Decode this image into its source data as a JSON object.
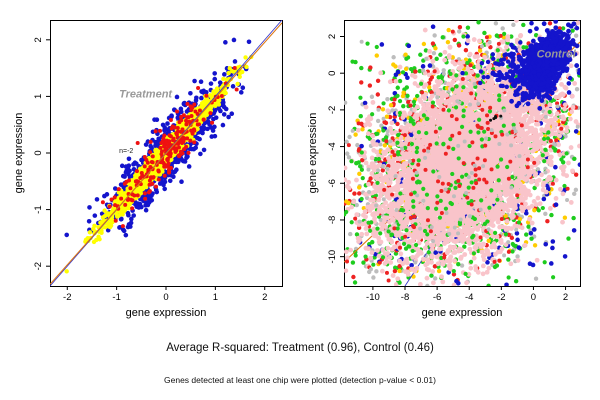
{
  "captions": {
    "summary": "Average R-squared: Treatment (0.96), Control (0.46)",
    "footnote": "Genes detected at least one chip were plotted (detection p-value < 0.01)"
  },
  "chart_data": [
    {
      "type": "scatter",
      "panel": "Treatment",
      "xlabel": "gene expression",
      "ylabel": "gene expression",
      "xlim": [
        -2.35,
        2.35
      ],
      "ylim": [
        -2.35,
        2.35
      ],
      "xticks": [
        -2,
        -1,
        0,
        1,
        2
      ],
      "yticks": [
        -2,
        -1,
        0,
        1,
        2
      ],
      "grid": false,
      "legend": "none",
      "lines": [
        {
          "x1": -2.35,
          "y1": -2.35,
          "x2": 2.35,
          "y2": 2.35,
          "color": "#3a3acc",
          "width": 0.9
        },
        {
          "x1": -2.35,
          "y1": -2.32,
          "x2": 2.35,
          "y2": 2.3,
          "color": "#dd7711",
          "width": 1.1
        }
      ],
      "annotations": [
        {
          "text": "Treatment",
          "x": -0.95,
          "y": 0.98,
          "color": "#999999",
          "size": 11,
          "bold": true,
          "italic": true
        },
        {
          "text": "n=-2",
          "x": -0.95,
          "y": 0.0,
          "color": "#222222",
          "size": 7,
          "bold": false,
          "italic": false
        }
      ],
      "clusters": [
        {
          "name": "outlier-blue",
          "color": "#1414cc",
          "n": 1000,
          "cx": 0,
          "cy": 0,
          "sx": 0.58,
          "sy": 0.58,
          "corr": 0.9,
          "r": 2.3,
          "seed": 11,
          "layer": 0
        },
        {
          "name": "core-yellow",
          "color": "#ffff00",
          "n": 2800,
          "cx": 0,
          "cy": 0,
          "sx": 0.52,
          "sy": 0.52,
          "corr": 0.985,
          "r": 2.2,
          "seed": 22,
          "layer": 0
        },
        {
          "name": "flagged-red",
          "color": "#ee1111",
          "n": 220,
          "cx": 0,
          "cy": 0,
          "sx": 0.5,
          "sy": 0.5,
          "corr": 0.9,
          "r": 2.0,
          "seed": 33,
          "layer": 0
        }
      ]
    },
    {
      "type": "scatter",
      "panel": "Control",
      "xlabel": "gene expression",
      "ylabel": "gene expression",
      "xlim": [
        -11.8,
        2.9
      ],
      "ylim": [
        -11.6,
        2.9
      ],
      "xticks": [
        -10,
        -8,
        -6,
        -4,
        -2,
        0,
        2
      ],
      "yticks": [
        2,
        0,
        -2,
        -4,
        -6,
        -8,
        -10
      ],
      "grid": false,
      "legend": "none",
      "lines": [
        {
          "x1": -8.0,
          "y1": -11.6,
          "x2": 2.9,
          "y2": 2.9,
          "color": "#3a3acc",
          "width": 0.9
        },
        {
          "x1": -11.8,
          "y1": -10.3,
          "x2": 2.9,
          "y2": 1.7,
          "color": "#dd7711",
          "width": 1.1
        }
      ],
      "annotations": [
        {
          "text": "Control",
          "x": 0.2,
          "y": 0.85,
          "color": "#999999",
          "size": 11,
          "bold": true,
          "italic": true
        }
      ],
      "clusters": [
        {
          "name": "fringe-gray",
          "color": "#bdbdbd",
          "n": 550,
          "cx": -4.6,
          "cy": -4.6,
          "sx": 3.7,
          "sy": 3.5,
          "corr": 0.3,
          "r": 2.2,
          "seed": 41,
          "layer": 0
        },
        {
          "name": "fringe-green",
          "color": "#1ecc1e",
          "n": 800,
          "cx": -4.8,
          "cy": -5.0,
          "sx": 3.5,
          "sy": 3.4,
          "corr": 0.25,
          "r": 2.2,
          "seed": 42,
          "layer": 0
        },
        {
          "name": "fringe-red",
          "color": "#ee2222",
          "n": 500,
          "cx": -4.3,
          "cy": -4.7,
          "sx": 3.4,
          "sy": 3.3,
          "corr": 0.3,
          "r": 2.2,
          "seed": 43,
          "layer": 0
        },
        {
          "name": "fringe-yellow",
          "color": "#ffcc00",
          "n": 330,
          "cx": -4.5,
          "cy": -4.6,
          "sx": 3.3,
          "sy": 3.1,
          "corr": 0.25,
          "r": 2.2,
          "seed": 44,
          "layer": 0
        },
        {
          "name": "scatter-blue",
          "color": "#1414cc",
          "n": 280,
          "cx": -3.8,
          "cy": -5.6,
          "sx": 4.3,
          "sy": 3.9,
          "corr": 0.2,
          "r": 2.3,
          "seed": 45,
          "layer": 0
        },
        {
          "name": "core-pink",
          "color": "#f9c4ca",
          "n": 5200,
          "cx": -4.3,
          "cy": -4.9,
          "sx": 2.55,
          "sy": 2.45,
          "corr": 0.38,
          "r": 2.4,
          "seed": 46,
          "layer": 1
        },
        {
          "name": "sprinkle-green",
          "color": "#1ecc1e",
          "n": 230,
          "cx": -4.8,
          "cy": -5.2,
          "sx": 3.9,
          "sy": 3.6,
          "corr": 0.2,
          "r": 2.1,
          "seed": 47,
          "layer": 1
        },
        {
          "name": "sprinkle-red",
          "color": "#ee2222",
          "n": 140,
          "cx": -4.0,
          "cy": -4.5,
          "sx": 3.8,
          "sy": 3.5,
          "corr": 0.25,
          "r": 2.0,
          "seed": 48,
          "layer": 1
        },
        {
          "name": "sprinkle-gray",
          "color": "#bdbdbd",
          "n": 90,
          "cx": -4.6,
          "cy": -4.8,
          "sx": 3.9,
          "sy": 3.6,
          "corr": 0.2,
          "r": 2.0,
          "seed": 49,
          "layer": 1
        },
        {
          "name": "cluster-blue",
          "color": "#1414cc",
          "n": 1000,
          "cx": 0.7,
          "cy": 0.5,
          "sx": 0.7,
          "sy": 0.8,
          "corr": 0.5,
          "r": 2.4,
          "seed": 50,
          "layer": 1
        },
        {
          "name": "band-blue",
          "color": "#1414cc",
          "n": 170,
          "cx": -0.6,
          "cy": 0.4,
          "sx": 1.4,
          "sy": 0.55,
          "corr": 0.3,
          "r": 2.2,
          "seed": 51,
          "layer": 1
        },
        {
          "name": "spot-black",
          "color": "#111111",
          "n": 5,
          "cx": -2.3,
          "cy": -2.4,
          "sx": 0.15,
          "sy": 0.1,
          "corr": 0.0,
          "r": 1.5,
          "seed": 52,
          "layer": 1
        }
      ]
    }
  ]
}
